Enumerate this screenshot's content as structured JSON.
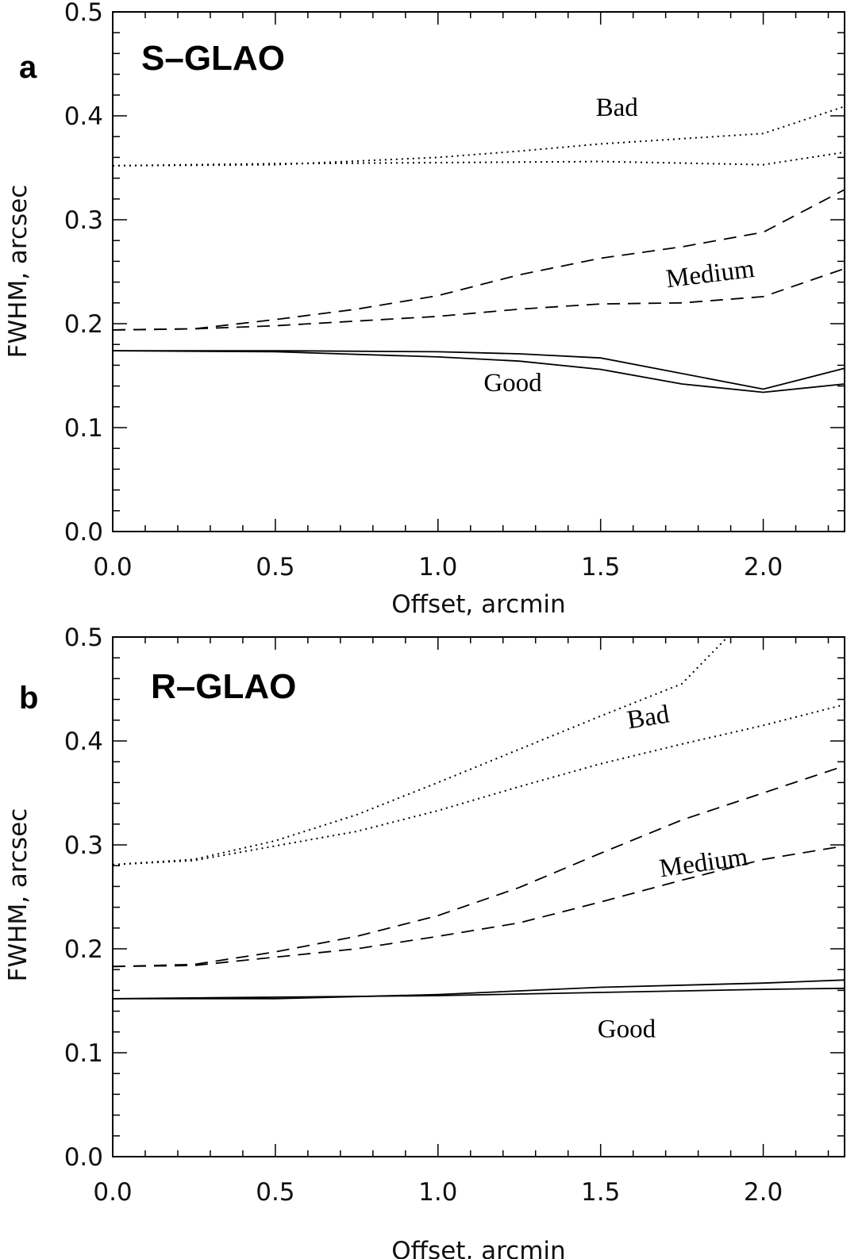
{
  "chart_data": [
    {
      "type": "line",
      "panel_letter": "a",
      "title": "S–GLAO",
      "xlabel": "Offset, arcmin",
      "ylabel": "FWHM, arcsec",
      "xlim": [
        0,
        2.25
      ],
      "ylim": [
        0,
        0.5
      ],
      "xticks": [
        "0.0",
        "0.5",
        "1.0",
        "1.5",
        "2.0"
      ],
      "yticks": [
        "0.0",
        "0.1",
        "0.2",
        "0.3",
        "0.4",
        "0.5"
      ],
      "grid": false,
      "series": [
        {
          "name": "Bad",
          "style": "dotted",
          "x": [
            0,
            0.5,
            1.0,
            1.25,
            1.5,
            2.0,
            2.25
          ],
          "y": [
            0.352,
            0.353,
            0.36,
            0.366,
            0.373,
            0.383,
            0.409
          ]
        },
        {
          "name": "Bad",
          "style": "dotted",
          "x": [
            0,
            0.5,
            1.0,
            1.5,
            2.0,
            2.25
          ],
          "y": [
            0.352,
            0.354,
            0.355,
            0.356,
            0.353,
            0.365
          ]
        },
        {
          "name": "Medium",
          "style": "dashed",
          "x": [
            0,
            0.25,
            0.5,
            0.75,
            1.0,
            1.25,
            1.5,
            1.75,
            2.0,
            2.25
          ],
          "y": [
            0.194,
            0.195,
            0.204,
            0.214,
            0.227,
            0.247,
            0.263,
            0.274,
            0.288,
            0.329
          ]
        },
        {
          "name": "Medium",
          "style": "dashed",
          "x": [
            0,
            0.25,
            0.5,
            1.0,
            1.25,
            1.5,
            1.75,
            2.0,
            2.25
          ],
          "y": [
            0.194,
            0.195,
            0.198,
            0.207,
            0.214,
            0.219,
            0.22,
            0.226,
            0.253
          ]
        },
        {
          "name": "Good",
          "style": "solid",
          "x": [
            0,
            0.5,
            1.0,
            1.25,
            1.5,
            2.0,
            2.25
          ],
          "y": [
            0.174,
            0.174,
            0.173,
            0.171,
            0.167,
            0.137,
            0.157
          ]
        },
        {
          "name": "Good",
          "style": "solid",
          "x": [
            0,
            0.5,
            1.0,
            1.25,
            1.5,
            1.75,
            2.0,
            2.25
          ],
          "y": [
            0.174,
            0.173,
            0.168,
            0.164,
            0.156,
            0.142,
            0.134,
            0.142
          ]
        }
      ],
      "labels": [
        {
          "text": "Bad",
          "x": 1.55,
          "y": 0.4,
          "rotate": 0
        },
        {
          "text": "Medium",
          "x": 1.84,
          "y": 0.24,
          "rotate": -7
        },
        {
          "text": "Good",
          "x": 1.23,
          "y": 0.135,
          "rotate": 0
        }
      ]
    },
    {
      "type": "line",
      "panel_letter": "b",
      "title": "R–GLAO",
      "xlabel": "Offset, arcmin",
      "ylabel": "FWHM, arcsec",
      "xlim": [
        0,
        2.25
      ],
      "ylim": [
        0,
        0.5
      ],
      "xticks": [
        "0.0",
        "0.5",
        "1.0",
        "1.5",
        "2.0"
      ],
      "yticks": [
        "0.0",
        "0.1",
        "0.2",
        "0.3",
        "0.4",
        "0.5"
      ],
      "grid": false,
      "series": [
        {
          "name": "Bad",
          "style": "dotted",
          "x": [
            0,
            0.25,
            0.5,
            0.75,
            1.0,
            1.25,
            1.5,
            1.75,
            1.89
          ],
          "y": [
            0.281,
            0.286,
            0.304,
            0.329,
            0.36,
            0.392,
            0.424,
            0.455,
            0.5
          ]
        },
        {
          "name": "Bad",
          "style": "dotted",
          "x": [
            0,
            0.25,
            0.5,
            0.75,
            1.0,
            1.25,
            1.5,
            1.75,
            2.0,
            2.25
          ],
          "y": [
            0.281,
            0.285,
            0.299,
            0.313,
            0.333,
            0.356,
            0.378,
            0.397,
            0.415,
            0.435
          ]
        },
        {
          "name": "Medium",
          "style": "dashed",
          "x": [
            0,
            0.25,
            0.5,
            0.75,
            1.0,
            1.25,
            1.5,
            1.75,
            2.0,
            2.25
          ],
          "y": [
            0.183,
            0.185,
            0.197,
            0.212,
            0.232,
            0.259,
            0.292,
            0.324,
            0.35,
            0.376
          ]
        },
        {
          "name": "Medium",
          "style": "dashed",
          "x": [
            0,
            0.25,
            0.5,
            0.75,
            1.0,
            1.25,
            1.5,
            1.75,
            2.0,
            2.25
          ],
          "y": [
            0.183,
            0.184,
            0.192,
            0.2,
            0.212,
            0.225,
            0.245,
            0.266,
            0.286,
            0.299
          ]
        },
        {
          "name": "Good",
          "style": "solid",
          "x": [
            0,
            0.5,
            1.0,
            1.5,
            2.0,
            2.25
          ],
          "y": [
            0.152,
            0.152,
            0.156,
            0.163,
            0.167,
            0.17
          ]
        },
        {
          "name": "Good",
          "style": "solid",
          "x": [
            0,
            1.0,
            1.5,
            2.0,
            2.25
          ],
          "y": [
            0.152,
            0.155,
            0.158,
            0.161,
            0.162
          ]
        }
      ],
      "labels": [
        {
          "text": "Bad",
          "x": 1.65,
          "y": 0.415,
          "rotate": -9
        },
        {
          "text": "Medium",
          "x": 1.82,
          "y": 0.275,
          "rotate": -8
        },
        {
          "text": "Good",
          "x": 1.58,
          "y": 0.115,
          "rotate": 0
        }
      ]
    }
  ]
}
